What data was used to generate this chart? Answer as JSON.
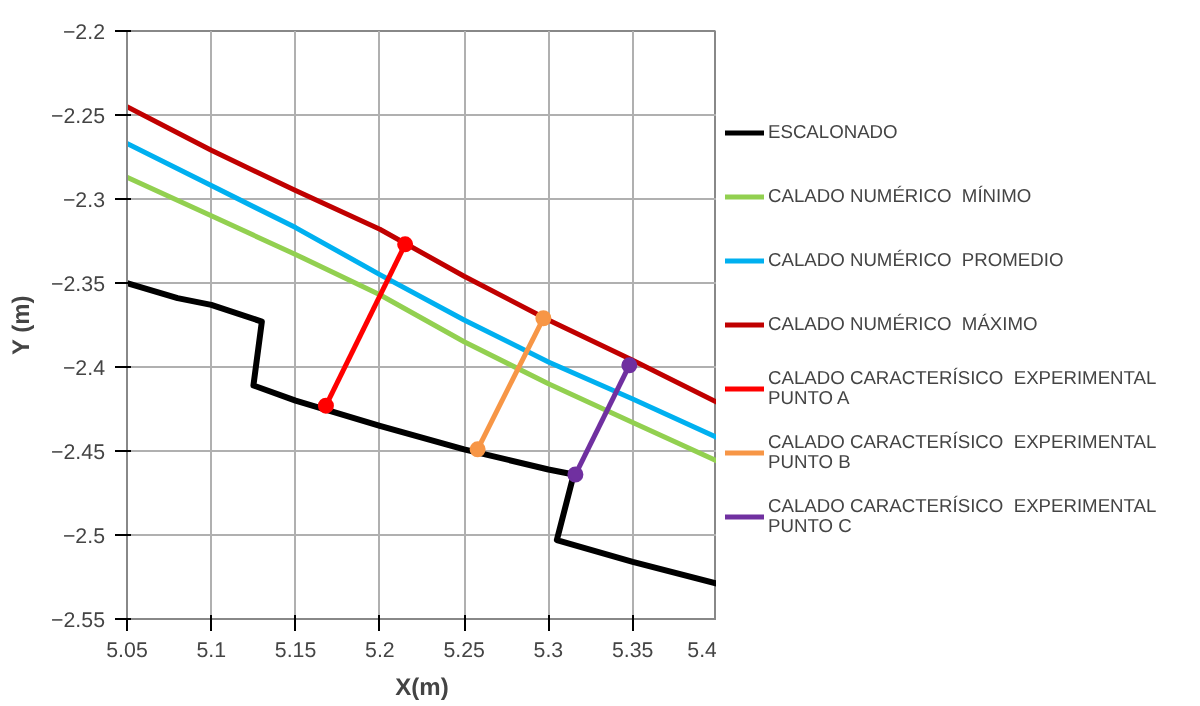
{
  "chart_data": {
    "type": "line",
    "xlabel": "X(m)",
    "ylabel": "Y (m)",
    "xlim": [
      5.05,
      5.4
    ],
    "ylim": [
      -2.55,
      -2.2
    ],
    "xticks": [
      5.05,
      5.1,
      5.15,
      5.2,
      5.25,
      5.3,
      5.35,
      5.4
    ],
    "yticks": [
      -2.55,
      -2.5,
      -2.45,
      -2.4,
      -2.35,
      -2.3,
      -2.25,
      -2.2
    ],
    "grid": true,
    "legend": "right",
    "marker": "none",
    "line_style": "solid",
    "series": [
      {
        "name": "ESCALONADO",
        "color": "#000000",
        "x": [
          5.05,
          5.08,
          5.1,
          5.13,
          5.125,
          5.15,
          5.2,
          5.25,
          5.3,
          5.315,
          5.305,
          5.35,
          5.4
        ],
        "values": [
          -2.35,
          -2.359,
          -2.363,
          -2.373,
          -2.411,
          -2.42,
          -2.435,
          -2.449,
          -2.461,
          -2.464,
          -2.503,
          -2.516,
          -2.529
        ]
      },
      {
        "name": "CALADO NUMÉRICO  MÍNIMO",
        "color": "#92d050",
        "x": [
          5.05,
          5.1,
          5.15,
          5.2,
          5.25,
          5.3,
          5.35,
          5.4
        ],
        "values": [
          -2.287,
          -2.31,
          -2.333,
          -2.357,
          -2.385,
          -2.41,
          -2.433,
          -2.456
        ]
      },
      {
        "name": "CALADO NUMÉRICO  PROMEDIO",
        "color": "#00b0f0",
        "x": [
          5.05,
          5.1,
          5.15,
          5.2,
          5.25,
          5.3,
          5.35,
          5.4
        ],
        "values": [
          -2.267,
          -2.292,
          -2.317,
          -2.345,
          -2.372,
          -2.397,
          -2.419,
          -2.442
        ]
      },
      {
        "name": "CALADO NUMÉRICO  MÁXIMO",
        "color": "#c00000",
        "x": [
          5.05,
          5.1,
          5.15,
          5.2,
          5.25,
          5.3,
          5.35,
          5.4
        ],
        "values": [
          -2.245,
          -2.271,
          -2.295,
          -2.318,
          -2.346,
          -2.372,
          -2.396,
          -2.421
        ]
      },
      {
        "name": "CALADO CARACTERÍSICO  EXPERIMENTAL PUNTO A",
        "color": "#ff0000",
        "marker": "circle",
        "x": [
          5.168,
          5.215
        ],
        "values": [
          -2.423,
          -2.327
        ]
      },
      {
        "name": "CALADO CARACTERÍSICO  EXPERIMENTAL PUNTO B",
        "color": "#f79646",
        "marker": "circle",
        "x": [
          5.258,
          5.297
        ],
        "values": [
          -2.449,
          -2.371
        ]
      },
      {
        "name": "CALADO CARACTERÍSICO  EXPERIMENTAL PUNTO C",
        "color": "#7030a0",
        "marker": "circle",
        "x": [
          5.316,
          5.348
        ],
        "values": [
          -2.464,
          -2.399
        ]
      }
    ]
  }
}
